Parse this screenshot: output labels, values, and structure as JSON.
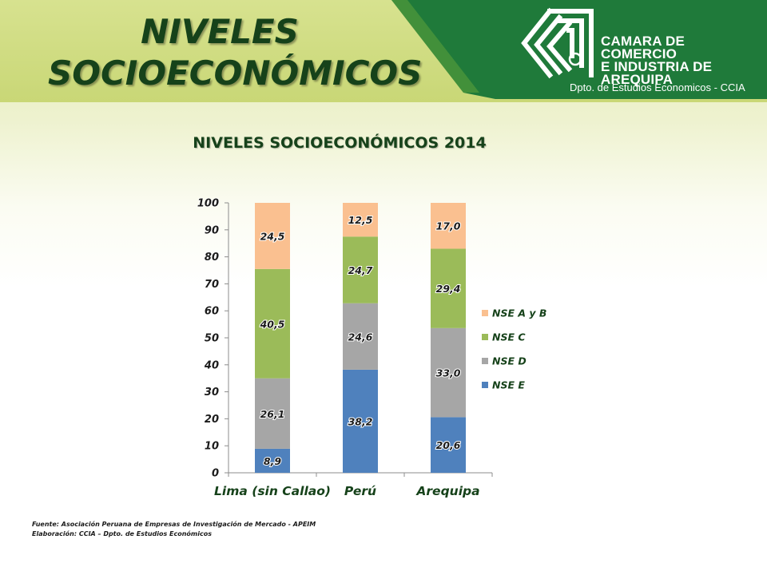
{
  "header": {
    "title_line1": "NIVELES",
    "title_line2": "SOCIOECONÓMICOS"
  },
  "organization": {
    "name_line1": "CAMARA DE COMERCIO",
    "name_line2": "E INDUSTRIA DE",
    "name_line3": "AREQUIPA",
    "department": "Dpto. de Estudios Economicos - CCIA",
    "logo_icon": "ccia-logo-icon",
    "brand_color": "#1f7a3a"
  },
  "chart_data": {
    "type": "bar",
    "stacked": true,
    "title": "NIVELES SOCIOECONÓMICOS  2014",
    "categories": [
      "Lima (sin Callao)",
      "Perú",
      "Arequipa"
    ],
    "series": [
      {
        "name": "NSE E",
        "values": [
          8.9,
          38.2,
          20.6
        ],
        "labels": [
          "8,9",
          "38,2",
          "20,6"
        ],
        "color": "#4f81bd"
      },
      {
        "name": "NSE D",
        "values": [
          26.1,
          24.6,
          33.0
        ],
        "labels": [
          "26,1",
          "24,6",
          "33,0"
        ],
        "color": "#a6a6a6"
      },
      {
        "name": "NSE C",
        "values": [
          40.5,
          24.7,
          29.4
        ],
        "labels": [
          "40,5",
          "24,7",
          "29,4"
        ],
        "color": "#9bbb59"
      },
      {
        "name": "NSE A y B",
        "values": [
          24.5,
          12.5,
          17.0
        ],
        "labels": [
          "24,5",
          "12,5",
          "17,0"
        ],
        "color": "#fac090"
      }
    ],
    "ylim": [
      0,
      100
    ],
    "yticks": [
      0,
      10,
      20,
      30,
      40,
      50,
      60,
      70,
      80,
      90,
      100
    ],
    "xlabel": "",
    "ylabel": "",
    "grid": false,
    "legend": "right",
    "legend_order": [
      "NSE A y B",
      "NSE C",
      "NSE D",
      "NSE E"
    ]
  },
  "footer": {
    "source": "Fuente: Asociación Peruana de Empresas de Investigación de Mercado - APEIM",
    "elaboration": "Elaboración: CCIA – Dpto. de Estudios Económicos"
  }
}
